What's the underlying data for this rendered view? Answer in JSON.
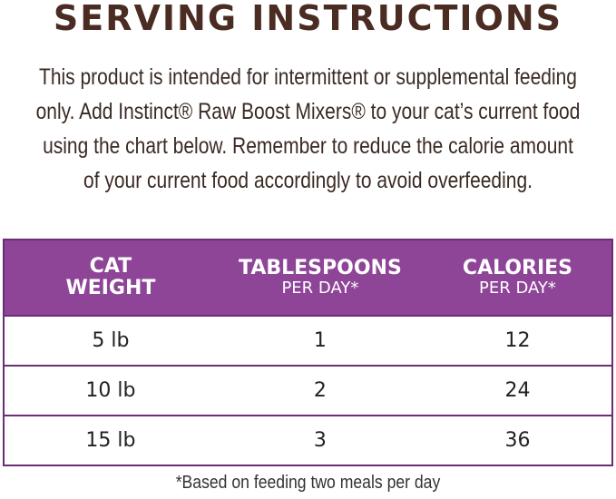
{
  "title": "SERVING INSTRUCTIONS",
  "intro_lines": [
    "This product is intended for intermittent or supplemental feeding",
    "only. Add Instinct® Raw Boost Mixers® to your cat’s current food",
    "using the chart below. Remember to reduce the calorie amount",
    "of your current food accordingly to avoid overfeeding."
  ],
  "table": {
    "headers": [
      {
        "main": "CAT WEIGHT",
        "sub": ""
      },
      {
        "main": "TABLESPOONS",
        "sub": "PER DAY*"
      },
      {
        "main": "CALORIES",
        "sub": "PER DAY*"
      }
    ],
    "rows": [
      [
        "5 lb",
        "1",
        "12"
      ],
      [
        "10 lb",
        "2",
        "24"
      ],
      [
        "15 lb",
        "3",
        "36"
      ]
    ]
  },
  "footnote": "*Based on feeding two meals per day",
  "colors": {
    "header": "#8e4597",
    "border": "#6b2d73",
    "title": "#4a2c22"
  }
}
